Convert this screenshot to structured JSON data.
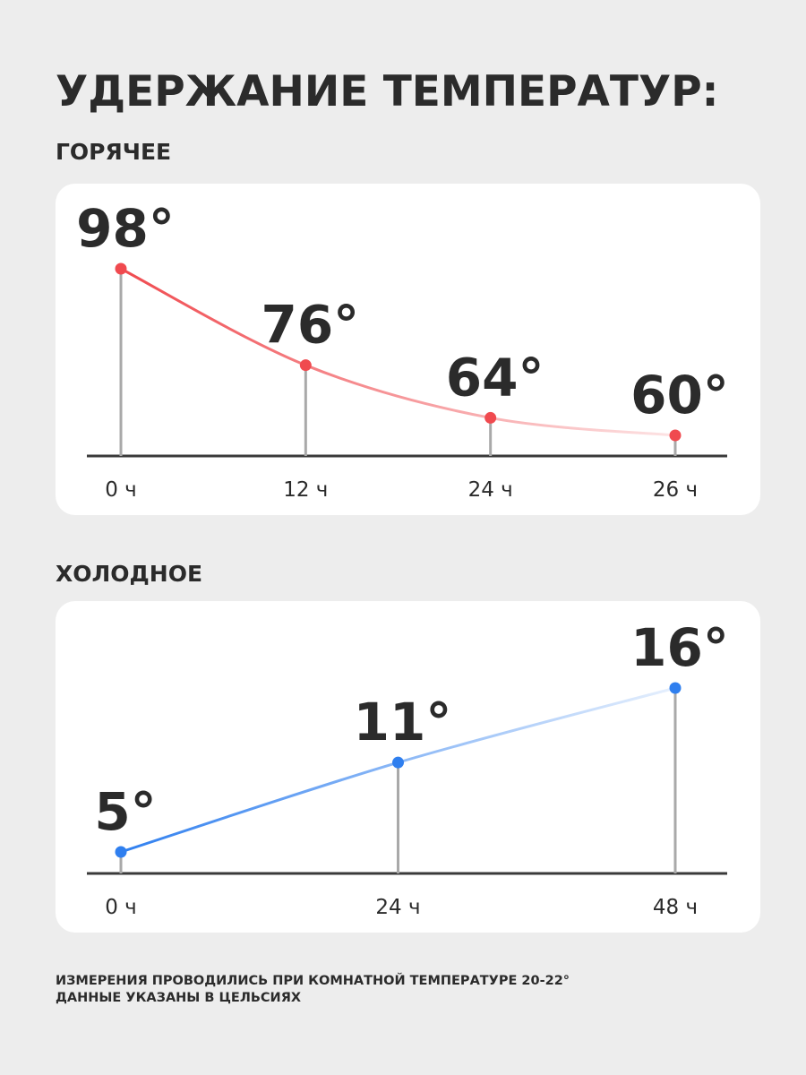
{
  "title": "УДЕРЖАНИЕ ТЕМПЕРАТУР:",
  "chart_data": [
    {
      "type": "line",
      "title": "ГОРЯЧЕЕ",
      "categories": [
        "0 ч",
        "12 ч",
        "24 ч",
        "26 ч"
      ],
      "values": [
        98,
        76,
        64,
        60
      ],
      "value_labels": [
        "98°",
        "76°",
        "64°",
        "60°"
      ],
      "color": "#f04a4f"
    },
    {
      "type": "line",
      "title": "ХОЛОДНОЕ",
      "categories": [
        "0 ч",
        "24 ч",
        "48 ч"
      ],
      "values": [
        5,
        11,
        16
      ],
      "value_labels": [
        "5°",
        "11°",
        "16°"
      ],
      "color": "#2f7fef"
    }
  ],
  "footnote": [
    "ИЗМЕРЕНИЯ ПРОВОДИЛИСЬ ПРИ КОМНАТНОЙ ТЕМПЕРАТУРЕ 20-22°",
    "ДАННЫЕ УКАЗАНЫ В ЦЕЛЬСИЯХ"
  ]
}
